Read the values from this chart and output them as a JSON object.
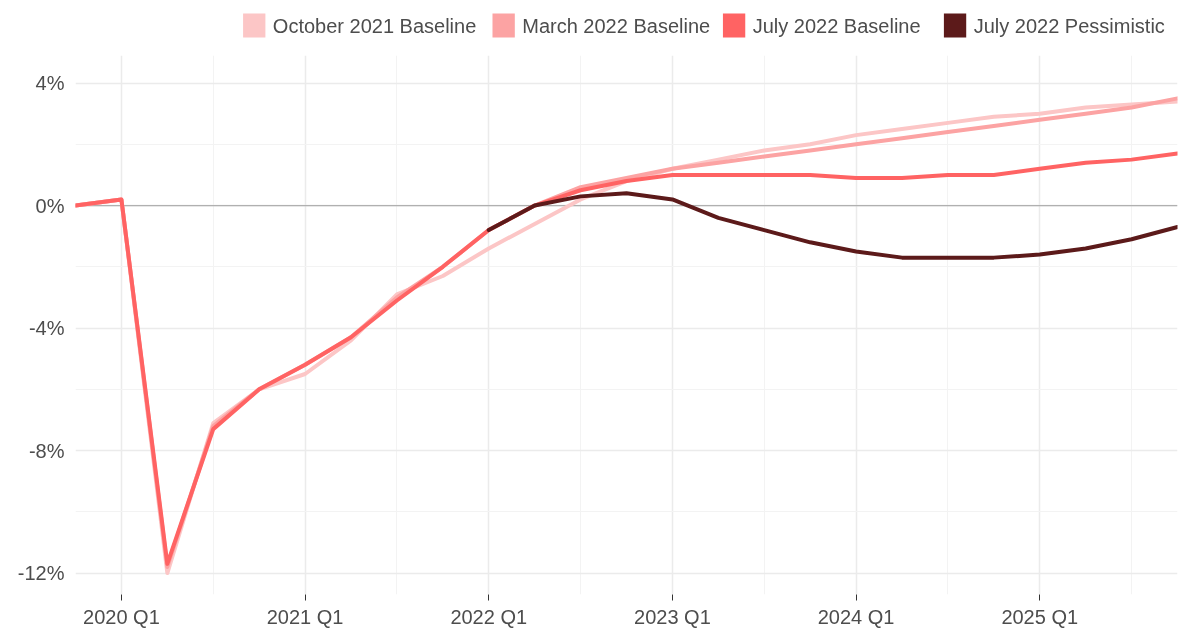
{
  "chart_data": {
    "type": "line",
    "categories": [
      null,
      "2020 Q1",
      null,
      null,
      null,
      "2021 Q1",
      null,
      null,
      null,
      "2022 Q1",
      null,
      null,
      null,
      "2023 Q1",
      null,
      null,
      null,
      "2024 Q1",
      null,
      null,
      null,
      "2025 Q1",
      null,
      null,
      null
    ],
    "series": [
      {
        "name": "October 2021 Baseline",
        "color": "#fcc6c6",
        "values": [
          0,
          0.2,
          -12.0,
          -7.1,
          -6.0,
          -5.5,
          -4.4,
          -2.9,
          -2.3,
          -1.4,
          -0.6,
          0.2,
          0.8,
          1.2,
          1.5,
          1.8,
          2.0,
          2.3,
          2.5,
          2.7,
          2.9,
          3.0,
          3.2,
          3.3,
          3.4
        ]
      },
      {
        "name": "March 2022 Baseline",
        "color": "#fca3a3",
        "values": [
          0,
          0.2,
          -11.8,
          -7.2,
          -6.0,
          -5.2,
          -4.3,
          -3.0,
          -2.0,
          -0.8,
          0.0,
          0.6,
          0.9,
          1.2,
          1.4,
          1.6,
          1.8,
          2.0,
          2.2,
          2.4,
          2.6,
          2.8,
          3.0,
          3.2,
          3.5
        ]
      },
      {
        "name": "July 2022 Baseline",
        "color": "#ff6363",
        "values": [
          0,
          0.2,
          -11.7,
          -7.3,
          -6.0,
          -5.2,
          -4.3,
          -3.1,
          -2.0,
          -0.8,
          0.0,
          0.5,
          0.8,
          1.0,
          1.0,
          1.0,
          1.0,
          0.9,
          0.9,
          1.0,
          1.0,
          1.2,
          1.4,
          1.5,
          1.7
        ]
      },
      {
        "name": "July 2022 Pessimistic",
        "color": "#5c1a1a",
        "values": [
          null,
          null,
          null,
          null,
          null,
          null,
          null,
          null,
          null,
          -0.8,
          0.0,
          0.3,
          0.4,
          0.2,
          -0.4,
          -0.8,
          -1.2,
          -1.5,
          -1.7,
          -1.7,
          -1.7,
          -1.6,
          -1.4,
          -1.1,
          -0.7
        ]
      }
    ],
    "ylim": [
      -12.7,
      4.9
    ],
    "yticks": [
      {
        "value": -12,
        "label": "-12%"
      },
      {
        "value": -8,
        "label": "-8%"
      },
      {
        "value": -4,
        "label": "-4%"
      },
      {
        "value": 0,
        "label": "0%"
      },
      {
        "value": 4,
        "label": "4%"
      }
    ],
    "ref_lines": [
      {
        "axis": "y",
        "value": 0,
        "color": "#b0b0b0"
      }
    ],
    "grid": true,
    "legend": "top",
    "line_style": "solid",
    "marker": "none"
  }
}
